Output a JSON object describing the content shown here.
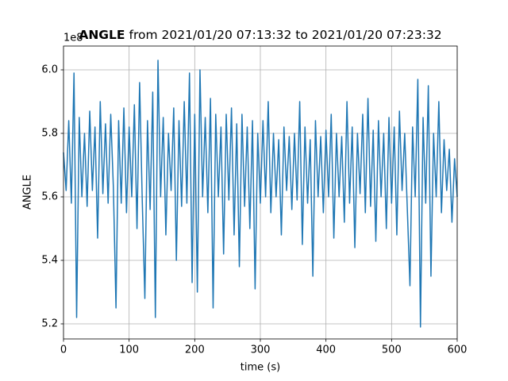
{
  "chart_data": {
    "type": "line",
    "title_bold": "ANGLE",
    "title": "from 2021/01/20 07:13:32 to 2021/01/20 07:23:32",
    "offset_label": "1e8",
    "xlabel": "time (s)",
    "ylabel": "ANGLE",
    "x": [
      0,
      4,
      8,
      12,
      16,
      20,
      24,
      28,
      32,
      36,
      40,
      44,
      48,
      52,
      56,
      60,
      64,
      68,
      72,
      76,
      80,
      84,
      88,
      92,
      96,
      100,
      104,
      108,
      112,
      116,
      120,
      124,
      128,
      132,
      136,
      140,
      144,
      148,
      152,
      156,
      160,
      164,
      168,
      172,
      176,
      180,
      184,
      188,
      192,
      196,
      200,
      204,
      208,
      212,
      216,
      220,
      224,
      228,
      232,
      236,
      240,
      244,
      248,
      252,
      256,
      260,
      264,
      268,
      272,
      276,
      280,
      284,
      288,
      292,
      296,
      300,
      304,
      308,
      312,
      316,
      320,
      324,
      328,
      332,
      336,
      340,
      344,
      348,
      352,
      356,
      360,
      364,
      368,
      372,
      376,
      380,
      384,
      388,
      392,
      396,
      400,
      404,
      408,
      412,
      416,
      420,
      424,
      428,
      432,
      436,
      440,
      444,
      448,
      452,
      456,
      460,
      464,
      468,
      472,
      476,
      480,
      484,
      488,
      492,
      496,
      500,
      504,
      508,
      512,
      516,
      520,
      524,
      528,
      532,
      536,
      540,
      544,
      548,
      552,
      556,
      560,
      564,
      568,
      572,
      576,
      580,
      584,
      588,
      592,
      596,
      600
    ],
    "series": [
      {
        "name": "ANGLE",
        "color": "#1f77b4",
        "values": [
          5.74,
          5.62,
          5.84,
          5.58,
          5.99,
          5.22,
          5.85,
          5.6,
          5.8,
          5.57,
          5.87,
          5.62,
          5.82,
          5.47,
          5.9,
          5.61,
          5.83,
          5.58,
          5.86,
          5.63,
          5.25,
          5.84,
          5.58,
          5.88,
          5.55,
          5.82,
          5.6,
          5.89,
          5.5,
          5.96,
          5.59,
          5.28,
          5.84,
          5.56,
          5.93,
          5.22,
          6.03,
          5.6,
          5.85,
          5.48,
          5.8,
          5.62,
          5.88,
          5.4,
          5.84,
          5.57,
          5.9,
          5.58,
          5.99,
          5.33,
          5.86,
          5.3,
          6.0,
          5.6,
          5.85,
          5.55,
          5.91,
          5.25,
          5.86,
          5.6,
          5.82,
          5.42,
          5.86,
          5.59,
          5.88,
          5.48,
          5.83,
          5.38,
          5.86,
          5.57,
          5.82,
          5.5,
          5.84,
          5.31,
          5.8,
          5.58,
          5.84,
          5.6,
          5.9,
          5.55,
          5.8,
          5.6,
          5.78,
          5.48,
          5.82,
          5.62,
          5.79,
          5.56,
          5.8,
          5.59,
          5.9,
          5.45,
          5.82,
          5.58,
          5.78,
          5.35,
          5.84,
          5.6,
          5.79,
          5.55,
          5.81,
          5.6,
          5.86,
          5.47,
          5.8,
          5.6,
          5.79,
          5.52,
          5.9,
          5.58,
          5.82,
          5.44,
          5.8,
          5.61,
          5.86,
          5.55,
          5.91,
          5.57,
          5.81,
          5.46,
          5.84,
          5.6,
          5.8,
          5.5,
          5.85,
          5.58,
          5.82,
          5.48,
          5.87,
          5.62,
          5.8,
          5.56,
          5.32,
          5.82,
          5.6,
          5.97,
          5.19,
          5.85,
          5.58,
          5.95,
          5.35,
          5.8,
          5.6,
          5.9,
          5.55,
          5.78,
          5.62,
          5.75,
          5.52,
          5.72,
          5.6
        ]
      }
    ],
    "xlim": [
      0,
      600
    ],
    "xticks": [
      0,
      100,
      200,
      300,
      400,
      500,
      600
    ],
    "ylim": [
      5.1525,
      6.075
    ],
    "yticks": [
      {
        "value": 5.2,
        "label": "5.2"
      },
      {
        "value": 5.4,
        "label": "5.4"
      },
      {
        "value": 5.6,
        "label": "5.6"
      },
      {
        "value": 5.8,
        "label": "5.8"
      },
      {
        "value": 6.0,
        "label": "6.0"
      }
    ],
    "grid": true
  }
}
